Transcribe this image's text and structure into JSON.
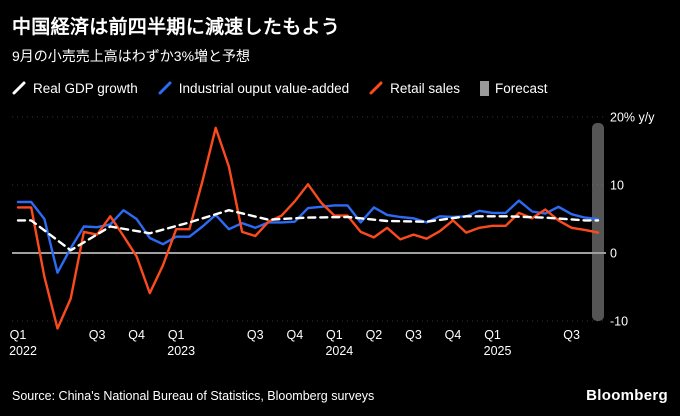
{
  "footer": {
    "source": "Source: China's National Bureau of Statistics, Bloomberg surveys",
    "logo": "Bloomberg"
  },
  "chart_data": {
    "type": "line",
    "title": "中国経済は前四半期に減速したもよう",
    "subtitle": "9月の小売売上高はわずか3%増と予想",
    "unit": "% y/y",
    "legend_position": "top",
    "x_monthly_start": "2022-01",
    "n_points": 45,
    "ylim": [
      -13,
      22
    ],
    "y_ticks": [
      {
        "value": 20,
        "label": "20% y/y"
      },
      {
        "value": 10,
        "label": "10"
      },
      {
        "value": 0,
        "label": "0"
      },
      {
        "value": -10,
        "label": "-10"
      }
    ],
    "x_ticks": [
      {
        "index": 0,
        "label": "Q1",
        "year": "2022"
      },
      {
        "index": 6,
        "label": "Q3"
      },
      {
        "index": 9,
        "label": "Q4"
      },
      {
        "index": 12,
        "label": "Q1",
        "year": "2023"
      },
      {
        "index": 18,
        "label": "Q3"
      },
      {
        "index": 21,
        "label": "Q4"
      },
      {
        "index": 24,
        "label": "Q1",
        "year": "2024"
      },
      {
        "index": 27,
        "label": "Q2"
      },
      {
        "index": 30,
        "label": "Q3"
      },
      {
        "index": 33,
        "label": "Q4"
      },
      {
        "index": 36,
        "label": "Q1",
        "year": "2025"
      },
      {
        "index": 42,
        "label": "Q3"
      }
    ],
    "series": [
      {
        "name": "Real GDP growth",
        "color": "#ffffff",
        "style": "dashed",
        "cadence": "quarterly",
        "x": [
          0,
          1,
          4,
          7,
          10,
          13,
          16,
          19,
          22,
          25,
          28,
          31,
          34,
          37,
          40,
          43,
          44
        ],
        "values": [
          4.8,
          4.8,
          0.4,
          3.9,
          2.9,
          4.5,
          6.3,
          4.9,
          5.2,
          5.3,
          4.7,
          4.6,
          5.4,
          5.4,
          5.2,
          4.8,
          4.8
        ]
      },
      {
        "name": "Industrial ouput value-added",
        "color": "#2d6bf5",
        "style": "solid",
        "cadence": "monthly",
        "values": [
          7.5,
          7.5,
          5.0,
          -2.9,
          0.7,
          3.9,
          3.8,
          4.2,
          6.3,
          5.0,
          2.2,
          1.3,
          2.4,
          2.4,
          3.9,
          5.6,
          3.5,
          4.4,
          3.7,
          4.5,
          4.5,
          4.6,
          6.6,
          6.8,
          7.0,
          7.0,
          4.5,
          6.7,
          5.6,
          5.3,
          5.1,
          4.5,
          5.4,
          5.3,
          5.4,
          6.2,
          5.9,
          5.9,
          7.7,
          6.1,
          5.8,
          6.8,
          5.7,
          5.2,
          5.0
        ]
      },
      {
        "name": "Retail sales",
        "color": "#fb4b1e",
        "style": "solid",
        "cadence": "monthly",
        "values": [
          6.7,
          6.7,
          -3.5,
          -11.1,
          -6.7,
          3.1,
          2.7,
          5.4,
          2.5,
          -0.5,
          -5.9,
          -1.8,
          3.5,
          3.5,
          10.6,
          18.4,
          12.7,
          3.1,
          2.5,
          4.6,
          5.5,
          7.6,
          10.1,
          7.4,
          5.5,
          5.5,
          3.1,
          2.3,
          3.7,
          2.0,
          2.7,
          2.1,
          3.2,
          4.8,
          3.0,
          3.7,
          4.0,
          4.0,
          5.9,
          5.1,
          6.4,
          4.8,
          3.7,
          3.4,
          3.0
        ]
      }
    ],
    "forecast": {
      "label": "Forecast",
      "color": "#9a9a9a",
      "index": 44
    }
  }
}
